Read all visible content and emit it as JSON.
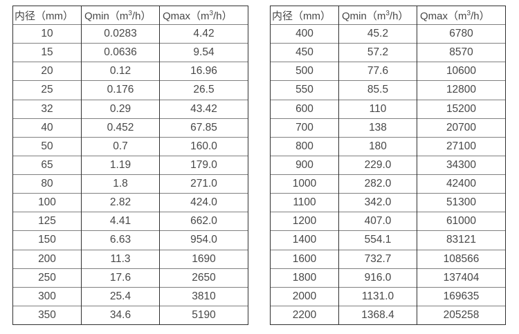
{
  "colors": {
    "background": "#ffffff",
    "text": "#474747",
    "border_vertical": "#2f2f2f",
    "border_horizontal": "#7f7f7f"
  },
  "tables": [
    {
      "name": "flow-spec-table-small-diameters",
      "headers": [
        "内径（mm）",
        "Qmin（m³/h）",
        "Qmax（m³/h）"
      ],
      "rows": [
        [
          "10",
          "0.0283",
          "4.42"
        ],
        [
          "15",
          "0.0636",
          "9.54"
        ],
        [
          "20",
          "0.12",
          "16.96"
        ],
        [
          "25",
          "0.176",
          "26.5"
        ],
        [
          "32",
          "0.29",
          "43.42"
        ],
        [
          "40",
          "0.452",
          "67.85"
        ],
        [
          "50",
          "0.7",
          "160.0"
        ],
        [
          "65",
          "1.19",
          "179.0"
        ],
        [
          "80",
          "1.8",
          "271.0"
        ],
        [
          "100",
          "2.82",
          "424.0"
        ],
        [
          "125",
          "4.41",
          "662.0"
        ],
        [
          "150",
          "6.63",
          "954.0"
        ],
        [
          "200",
          "11.3",
          "1690"
        ],
        [
          "250",
          "17.6",
          "2650"
        ],
        [
          "300",
          "25.4",
          "3810"
        ],
        [
          "350",
          "34.6",
          "5190"
        ]
      ]
    },
    {
      "name": "flow-spec-table-large-diameters",
      "headers": [
        "内径（mm）",
        "Qmin（m³/h）",
        "Qmax（m³/h）"
      ],
      "rows": [
        [
          "400",
          "45.2",
          "6780"
        ],
        [
          "450",
          "57.2",
          "8570"
        ],
        [
          "500",
          "77.6",
          "10600"
        ],
        [
          "550",
          "85.5",
          "12800"
        ],
        [
          "600",
          "110",
          "15200"
        ],
        [
          "700",
          "138",
          "20700"
        ],
        [
          "800",
          "180",
          "27100"
        ],
        [
          "900",
          "229.0",
          "34300"
        ],
        [
          "1000",
          "282.0",
          "42400"
        ],
        [
          "1100",
          "342.0",
          "51300"
        ],
        [
          "1200",
          "407.0",
          "61000"
        ],
        [
          "1400",
          "554.1",
          "83121"
        ],
        [
          "1600",
          "732.7",
          "108566"
        ],
        [
          "1800",
          "916.0",
          "137404"
        ],
        [
          "2000",
          "1131.0",
          "169635"
        ],
        [
          "2200",
          "1368.4",
          "205258"
        ]
      ]
    }
  ]
}
